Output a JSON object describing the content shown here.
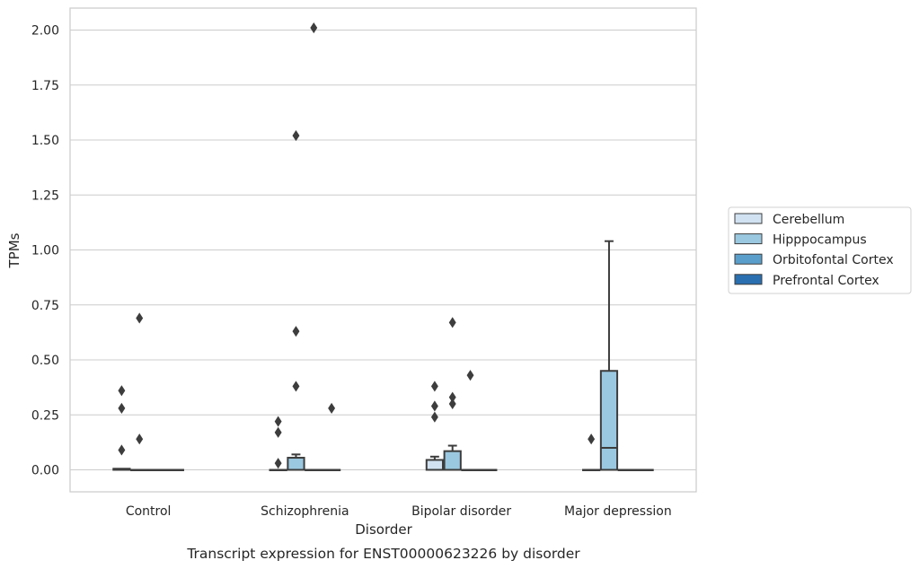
{
  "chart_data": {
    "type": "box",
    "ylabel": "TPMs",
    "xlabel": "Disorder",
    "caption": "Transcript expression for ENST00000623226 by disorder",
    "ylim": [
      -0.1,
      2.1
    ],
    "yticks": [
      0.0,
      0.25,
      0.5,
      0.75,
      1.0,
      1.25,
      1.5,
      1.75,
      2.0
    ],
    "ytick_labels": [
      "0.00",
      "0.25",
      "0.50",
      "0.75",
      "1.00",
      "1.25",
      "1.50",
      "1.75",
      "2.00"
    ],
    "grid": true,
    "legend_position": "right",
    "categories": [
      "Control",
      "Schizophrenia",
      "Bipolar disorder",
      "Major depression"
    ],
    "series": [
      {
        "name": "Cerebellum",
        "color": "#d1e2f2",
        "boxes": [
          {
            "q1": 0.0,
            "median": 0.0,
            "q3": 0.005,
            "whisker_low": 0.0,
            "whisker_high": 0.005,
            "outliers": [
              0.09,
              0.28,
              0.36
            ]
          },
          {
            "q1": 0.0,
            "median": 0.0,
            "q3": 0.0,
            "whisker_low": 0.0,
            "whisker_high": 0.0,
            "outliers": [
              0.03,
              0.17,
              0.22
            ]
          },
          {
            "q1": 0.0,
            "median": 0.0,
            "q3": 0.045,
            "whisker_low": 0.0,
            "whisker_high": 0.06,
            "outliers": [
              0.24,
              0.29,
              0.38
            ]
          },
          {
            "q1": 0.0,
            "median": 0.0,
            "q3": 0.0,
            "whisker_low": 0.0,
            "whisker_high": 0.0,
            "outliers": [
              0.14
            ]
          }
        ]
      },
      {
        "name": "Hipppocampus",
        "color": "#9ac8e0",
        "boxes": [
          {
            "q1": 0.0,
            "median": 0.0,
            "q3": 0.0,
            "whisker_low": 0.0,
            "whisker_high": 0.0,
            "outliers": [
              0.14,
              0.69
            ]
          },
          {
            "q1": 0.0,
            "median": 0.0,
            "q3": 0.055,
            "whisker_low": 0.0,
            "whisker_high": 0.07,
            "outliers": [
              0.38,
              0.63,
              1.52
            ]
          },
          {
            "q1": 0.0,
            "median": 0.0,
            "q3": 0.085,
            "whisker_low": 0.0,
            "whisker_high": 0.11,
            "outliers": [
              0.3,
              0.33,
              0.67
            ]
          },
          {
            "q1": 0.0,
            "median": 0.1,
            "q3": 0.45,
            "whisker_low": 0.0,
            "whisker_high": 1.04,
            "outliers": []
          }
        ]
      },
      {
        "name": "Orbitofontal Cortex",
        "color": "#5a9fcb",
        "boxes": [
          {
            "q1": 0.0,
            "median": 0.0,
            "q3": 0.0,
            "whisker_low": 0.0,
            "whisker_high": 0.0,
            "outliers": []
          },
          {
            "q1": 0.0,
            "median": 0.0,
            "q3": 0.0,
            "whisker_low": 0.0,
            "whisker_high": 0.0,
            "outliers": [
              2.01
            ]
          },
          {
            "q1": 0.0,
            "median": 0.0,
            "q3": 0.0,
            "whisker_low": 0.0,
            "whisker_high": 0.0,
            "outliers": [
              0.43
            ]
          },
          {
            "q1": 0.0,
            "median": 0.0,
            "q3": 0.0,
            "whisker_low": 0.0,
            "whisker_high": 0.0,
            "outliers": []
          }
        ]
      },
      {
        "name": "Prefrontal Cortex",
        "color": "#2a6fb0",
        "boxes": [
          {
            "q1": 0.0,
            "median": 0.0,
            "q3": 0.0,
            "whisker_low": 0.0,
            "whisker_high": 0.0,
            "outliers": []
          },
          {
            "q1": 0.0,
            "median": 0.0,
            "q3": 0.0,
            "whisker_low": 0.0,
            "whisker_high": 0.0,
            "outliers": [
              0.28
            ]
          },
          {
            "q1": 0.0,
            "median": 0.0,
            "q3": 0.0,
            "whisker_low": 0.0,
            "whisker_high": 0.0,
            "outliers": []
          },
          {
            "q1": 0.0,
            "median": 0.0,
            "q3": 0.0,
            "whisker_low": 0.0,
            "whisker_high": 0.0,
            "outliers": []
          }
        ]
      }
    ]
  }
}
